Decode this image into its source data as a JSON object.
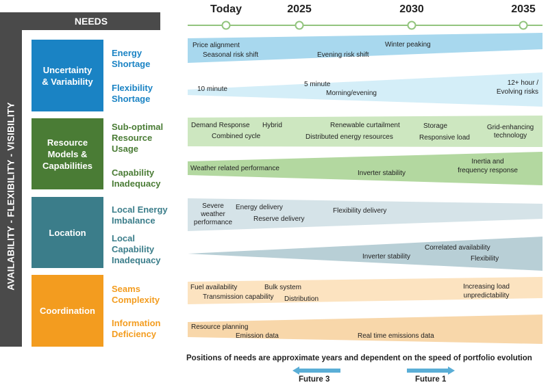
{
  "header": {
    "needs_label": "NEEDS",
    "side_label": "AVAILABILITY - FLEXIBILITY - VISIBILITY"
  },
  "timeline": {
    "years": [
      "Today",
      "2025",
      "2030",
      "2035"
    ]
  },
  "colors": {
    "blue": "#1a83c4",
    "green": "#4a7c35",
    "teal": "#3b7d8a",
    "orange": "#f39c1f",
    "dark": "#4a4a4a"
  },
  "categories": [
    {
      "label": "Uncertainty\n& Variability",
      "subs": [
        "Energy\nShortage",
        "Flexibility\nShortage"
      ]
    },
    {
      "label": "Resource\nModels &\nCapabilities",
      "subs": [
        "Sub-optimal\nResource\nUsage",
        "Capability\nInadequacy"
      ]
    },
    {
      "label": "Location",
      "subs": [
        "Local Energy\nImbalance",
        "Local\nCapability\nInadequacy"
      ]
    },
    {
      "label": "Coordination",
      "subs": [
        "Seams\nComplexity",
        "Information\nDeficiency"
      ]
    }
  ],
  "bands": {
    "energy_shortage": [
      "Price alignment",
      "Seasonal risk shift",
      "Evening risk shift",
      "Winter peaking"
    ],
    "flexibility_shortage": [
      "10 minute",
      "5 minute",
      "Morning/evening",
      "12+ hour /",
      "Evolving risks"
    ],
    "suboptimal_usage": [
      "Demand Response",
      "Hybrid",
      "Combined cycle",
      "Renewable curtailment",
      "Distributed energy resources",
      "Storage",
      "Responsive load",
      "Grid-enhancing",
      "technology"
    ],
    "capability_inadequacy": [
      "Weather related performance",
      "Inverter stability",
      "Inertia and",
      "frequency response"
    ],
    "local_energy_imbalance": [
      "Severe",
      "weather",
      "performance",
      "Energy delivery",
      "Reserve delivery",
      "Flexibility delivery"
    ],
    "local_capability_inadequacy": [
      "Correlated availability",
      "Inverter stability",
      "Flexibility"
    ],
    "seams_complexity": [
      "Fuel availability",
      "Transmission capability",
      "Bulk system",
      "Distribution",
      "Increasing load",
      "unpredictability"
    ],
    "information_deficiency": [
      "Resource planning",
      "Emission data",
      "Real time emissions data"
    ]
  },
  "footer": {
    "note": "Positions of needs are approximate years and dependent on the speed of portfolio evolution",
    "future3": "Future 3",
    "future1": "Future 1"
  }
}
